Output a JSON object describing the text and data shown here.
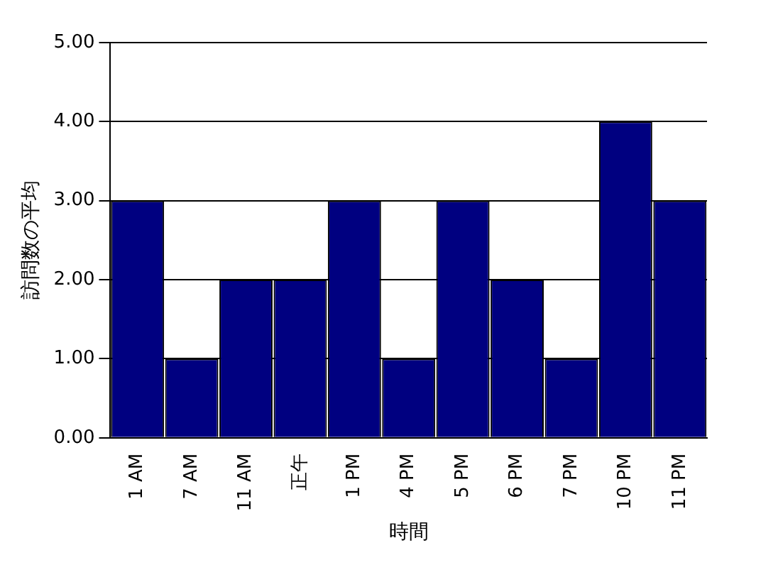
{
  "chart_data": {
    "type": "bar",
    "xlabel": "時間",
    "ylabel": "訪問数の平均",
    "categories": [
      "1 AM",
      "7 AM",
      "11 AM",
      "正午",
      "1 PM",
      "4 PM",
      "5 PM",
      "6 PM",
      "7 PM",
      "10 PM",
      "11 PM"
    ],
    "values": [
      3,
      1,
      2,
      2,
      3,
      1,
      3,
      2,
      1,
      4,
      3
    ],
    "color": "#000080",
    "ylim": [
      0,
      5
    ],
    "yticks": [
      {
        "value": 0,
        "label": "0.00"
      },
      {
        "value": 1,
        "label": "1.00"
      },
      {
        "value": 2,
        "label": "2.00"
      },
      {
        "value": 3,
        "label": "3.00"
      },
      {
        "value": 4,
        "label": "4.00"
      },
      {
        "value": 5,
        "label": "5.00"
      }
    ],
    "grid": "y"
  }
}
